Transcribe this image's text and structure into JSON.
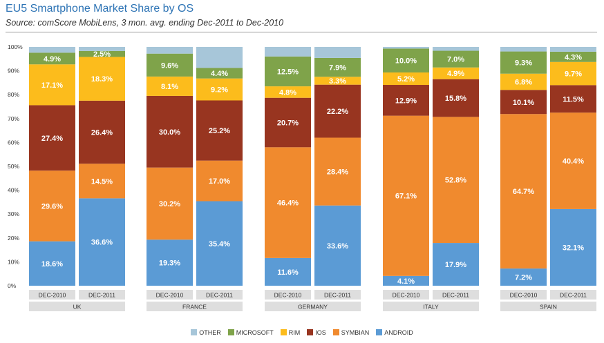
{
  "header": {
    "title": "EU5 Smartphone Market Share by OS",
    "subtitle": "Source: comScore MobiLens, 3 mon. avg. ending Dec-2011 to Dec-2010"
  },
  "chart_data": {
    "type": "bar",
    "stacked": true,
    "title": "EU5 Smartphone Market Share by OS",
    "ylim": [
      0,
      100
    ],
    "yticks": [
      "0%",
      "10%",
      "20%",
      "30%",
      "40%",
      "50%",
      "60%",
      "70%",
      "80%",
      "90%",
      "100%"
    ],
    "grid": false,
    "legend_position": "bottom",
    "series_order": [
      "ANDROID",
      "SYMBIAN",
      "IOS",
      "RIM",
      "MICROSOFT",
      "OTHER"
    ],
    "colors": {
      "ANDROID": "#5b9bd5",
      "SYMBIAN": "#f08a2e",
      "IOS": "#983520",
      "RIM": "#fcbc1c",
      "MICROSOFT": "#7fa34a",
      "OTHER": "#a7c6d9"
    },
    "legend_order": [
      "OTHER",
      "MICROSOFT",
      "RIM",
      "IOS",
      "SYMBIAN",
      "ANDROID"
    ],
    "groups": [
      {
        "country": "UK",
        "bars": [
          {
            "period": "DEC-2010",
            "values": {
              "ANDROID": 18.6,
              "SYMBIAN": 29.6,
              "IOS": 27.4,
              "RIM": 17.1,
              "MICROSOFT": 4.9,
              "OTHER": 2.4
            },
            "labels": {
              "ANDROID": "18.6%",
              "SYMBIAN": "29.6%",
              "IOS": "27.4%",
              "RIM": "17.1%",
              "MICROSOFT": "4.9%"
            }
          },
          {
            "period": "DEC-2011",
            "values": {
              "ANDROID": 36.6,
              "SYMBIAN": 14.5,
              "IOS": 26.4,
              "RIM": 18.3,
              "MICROSOFT": 2.5,
              "OTHER": 1.7
            },
            "labels": {
              "ANDROID": "36.6%",
              "SYMBIAN": "14.5%",
              "IOS": "26.4%",
              "RIM": "18.3%",
              "MICROSOFT": "2.5%"
            }
          }
        ]
      },
      {
        "country": "FRANCE",
        "bars": [
          {
            "period": "DEC-2010",
            "values": {
              "ANDROID": 19.3,
              "SYMBIAN": 30.2,
              "IOS": 30.0,
              "RIM": 8.1,
              "MICROSOFT": 9.6,
              "OTHER": 2.8
            },
            "labels": {
              "ANDROID": "19.3%",
              "SYMBIAN": "30.2%",
              "IOS": "30.0%",
              "RIM": "8.1%",
              "MICROSOFT": "9.6%"
            }
          },
          {
            "period": "DEC-2011",
            "values": {
              "ANDROID": 35.4,
              "SYMBIAN": 17.0,
              "IOS": 25.2,
              "RIM": 9.2,
              "MICROSOFT": 4.4,
              "OTHER": 8.8
            },
            "labels": {
              "ANDROID": "35.4%",
              "SYMBIAN": "17.0%",
              "IOS": "25.2%",
              "RIM": "9.2%",
              "MICROSOFT": "4.4%"
            }
          }
        ]
      },
      {
        "country": "GERMANY",
        "bars": [
          {
            "period": "DEC-2010",
            "values": {
              "ANDROID": 11.6,
              "SYMBIAN": 46.4,
              "IOS": 20.7,
              "RIM": 4.8,
              "MICROSOFT": 12.5,
              "OTHER": 4.0
            },
            "labels": {
              "ANDROID": "11.6%",
              "SYMBIAN": "46.4%",
              "IOS": "20.7%",
              "RIM": "4.8%",
              "MICROSOFT": "12.5%"
            }
          },
          {
            "period": "DEC-2011",
            "values": {
              "ANDROID": 33.6,
              "SYMBIAN": 28.4,
              "IOS": 22.2,
              "RIM": 3.3,
              "MICROSOFT": 7.9,
              "OTHER": 4.6
            },
            "labels": {
              "ANDROID": "33.6%",
              "SYMBIAN": "28.4%",
              "IOS": "22.2%",
              "RIM": "3.3%",
              "MICROSOFT": "7.9%"
            }
          }
        ]
      },
      {
        "country": "ITALY",
        "bars": [
          {
            "period": "DEC-2010",
            "values": {
              "ANDROID": 4.1,
              "SYMBIAN": 67.1,
              "IOS": 12.9,
              "RIM": 5.2,
              "MICROSOFT": 10.0,
              "OTHER": 0.7
            },
            "labels": {
              "ANDROID": "4.1%",
              "SYMBIAN": "67.1%",
              "IOS": "12.9%",
              "RIM": "5.2%",
              "MICROSOFT": "10.0%"
            }
          },
          {
            "period": "DEC-2011",
            "values": {
              "ANDROID": 17.9,
              "SYMBIAN": 52.8,
              "IOS": 15.8,
              "RIM": 4.9,
              "MICROSOFT": 7.0,
              "OTHER": 1.6
            },
            "labels": {
              "ANDROID": "17.9%",
              "SYMBIAN": "52.8%",
              "IOS": "15.8%",
              "RIM": "4.9%",
              "MICROSOFT": "7.0%"
            }
          }
        ]
      },
      {
        "country": "SPAIN",
        "bars": [
          {
            "period": "DEC-2010",
            "values": {
              "ANDROID": 7.2,
              "SYMBIAN": 64.7,
              "IOS": 10.1,
              "RIM": 6.8,
              "MICROSOFT": 9.3,
              "OTHER": 1.9
            },
            "labels": {
              "ANDROID": "7.2%",
              "SYMBIAN": "64.7%",
              "IOS": "10.1%",
              "RIM": "6.8%",
              "MICROSOFT": "9.3%"
            }
          },
          {
            "period": "DEC-2011",
            "values": {
              "ANDROID": 32.1,
              "SYMBIAN": 40.4,
              "IOS": 11.5,
              "RIM": 9.7,
              "MICROSOFT": 4.3,
              "OTHER": 2.0
            },
            "labels": {
              "ANDROID": "32.1%",
              "SYMBIAN": "40.4%",
              "IOS": "11.5%",
              "RIM": "9.7%",
              "MICROSOFT": "4.3%"
            }
          }
        ]
      }
    ]
  }
}
